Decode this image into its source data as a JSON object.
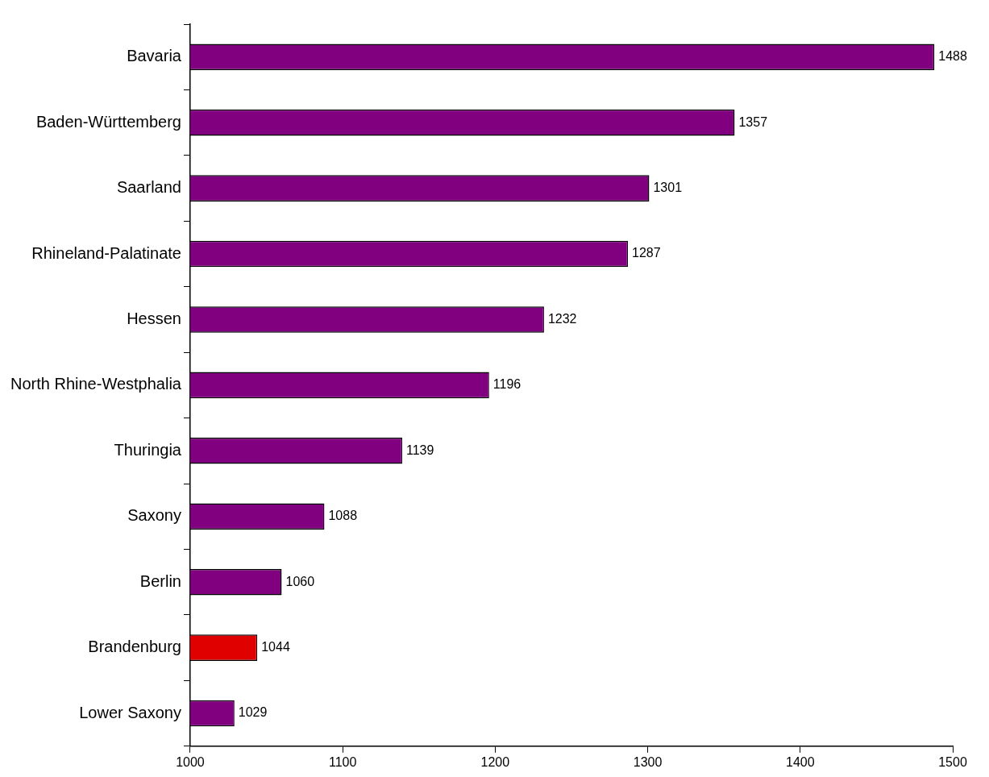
{
  "chart_data": {
    "type": "bar",
    "orientation": "horizontal",
    "categories": [
      "Bavaria",
      "Baden-Württemberg",
      "Saarland",
      "Rhineland-Palatinate",
      "Hessen",
      "North Rhine-Westphalia",
      "Thuringia",
      "Saxony",
      "Berlin",
      "Brandenburg",
      "Lower Saxony"
    ],
    "values": [
      1488,
      1357,
      1301,
      1287,
      1232,
      1196,
      1139,
      1088,
      1060,
      1044,
      1029
    ],
    "colors": [
      "#800080",
      "#800080",
      "#800080",
      "#800080",
      "#800080",
      "#800080",
      "#800080",
      "#800080",
      "#800080",
      "#e00000",
      "#800080"
    ],
    "xlim": [
      1000,
      1500
    ],
    "xticks": [
      1000,
      1100,
      1200,
      1300,
      1400,
      1500
    ],
    "data_labels": true,
    "grid": false,
    "legend": false
  }
}
